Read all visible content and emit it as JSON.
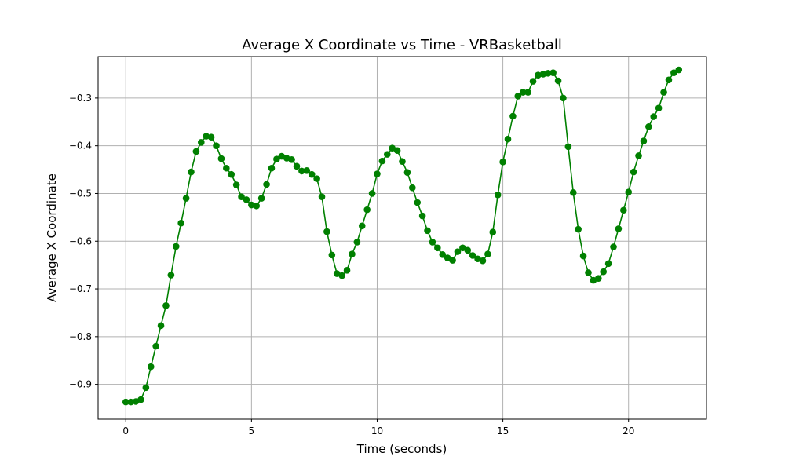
{
  "chart_data": {
    "type": "line",
    "title": "Average X Coordinate vs Time - VRBasketball",
    "xlabel": "Time (seconds)",
    "ylabel": "Average X Coordinate",
    "xlim": [
      -1.1,
      23.1
    ],
    "ylim": [
      -0.973,
      -0.213
    ],
    "xticks": [
      0,
      5,
      10,
      15,
      20
    ],
    "xtick_labels": [
      "0",
      "5",
      "10",
      "15",
      "20"
    ],
    "yticks": [
      -0.9,
      -0.8,
      -0.7,
      -0.6,
      -0.5,
      -0.4,
      -0.3
    ],
    "ytick_labels": [
      "−0.9",
      "−0.8",
      "−0.7",
      "−0.6",
      "−0.5",
      "−0.4",
      "−0.3"
    ],
    "grid": true,
    "legend": "none",
    "series": [
      {
        "color": "#008000",
        "marker": "circle",
        "x": [
          0.0,
          0.2,
          0.4,
          0.6,
          0.8,
          1.0,
          1.2,
          1.4,
          1.6,
          1.8,
          2.0,
          2.2,
          2.4,
          2.6,
          2.8,
          3.0,
          3.2,
          3.4,
          3.6,
          3.8,
          4.0,
          4.2,
          4.4,
          4.6,
          4.8,
          5.0,
          5.2,
          5.4,
          5.6,
          5.8,
          6.0,
          6.2,
          6.4,
          6.6,
          6.8,
          7.0,
          7.2,
          7.4,
          7.6,
          7.8,
          8.0,
          8.2,
          8.4,
          8.6,
          8.8,
          9.0,
          9.2,
          9.4,
          9.6,
          9.8,
          10.0,
          10.2,
          10.4,
          10.6,
          10.8,
          11.0,
          11.2,
          11.4,
          11.6,
          11.8,
          12.0,
          12.2,
          12.4,
          12.6,
          12.8,
          13.0,
          13.2,
          13.4,
          13.6,
          13.8,
          14.0,
          14.2,
          14.4,
          14.6,
          14.8,
          15.0,
          15.2,
          15.4,
          15.6,
          15.8,
          16.0,
          16.2,
          16.4,
          16.6,
          16.8,
          17.0,
          17.2,
          17.4,
          17.6,
          17.8,
          18.0,
          18.2,
          18.4,
          18.6,
          18.8,
          19.0,
          19.2,
          19.4,
          19.6,
          19.8,
          20.0,
          20.2,
          20.4,
          20.6,
          20.8,
          21.0,
          21.2,
          21.4,
          21.6,
          21.8,
          22.0
        ],
        "y": [
          -0.937,
          -0.937,
          -0.936,
          -0.932,
          -0.907,
          -0.863,
          -0.82,
          -0.777,
          -0.735,
          -0.671,
          -0.611,
          -0.562,
          -0.51,
          -0.455,
          -0.412,
          -0.393,
          -0.38,
          -0.382,
          -0.4,
          -0.427,
          -0.447,
          -0.46,
          -0.482,
          -0.507,
          -0.513,
          -0.524,
          -0.526,
          -0.51,
          -0.481,
          -0.447,
          -0.428,
          -0.422,
          -0.426,
          -0.429,
          -0.443,
          -0.453,
          -0.452,
          -0.46,
          -0.469,
          -0.507,
          -0.58,
          -0.629,
          -0.668,
          -0.672,
          -0.661,
          -0.627,
          -0.602,
          -0.568,
          -0.534,
          -0.5,
          -0.459,
          -0.432,
          -0.418,
          -0.405,
          -0.41,
          -0.433,
          -0.456,
          -0.488,
          -0.519,
          -0.547,
          -0.578,
          -0.602,
          -0.614,
          -0.628,
          -0.635,
          -0.64,
          -0.622,
          -0.614,
          -0.619,
          -0.63,
          -0.637,
          -0.641,
          -0.627,
          -0.581,
          -0.503,
          -0.434,
          -0.386,
          -0.338,
          -0.296,
          -0.288,
          -0.288,
          -0.265,
          -0.252,
          -0.25,
          -0.248,
          -0.247,
          -0.264,
          -0.3,
          -0.402,
          -0.498,
          -0.575,
          -0.631,
          -0.666,
          -0.682,
          -0.678,
          -0.664,
          -0.647,
          -0.612,
          -0.574,
          -0.535,
          -0.497,
          -0.455,
          -0.421,
          -0.39,
          -0.36,
          -0.339,
          -0.321,
          -0.288,
          -0.262,
          -0.247,
          -0.241
        ]
      }
    ]
  }
}
